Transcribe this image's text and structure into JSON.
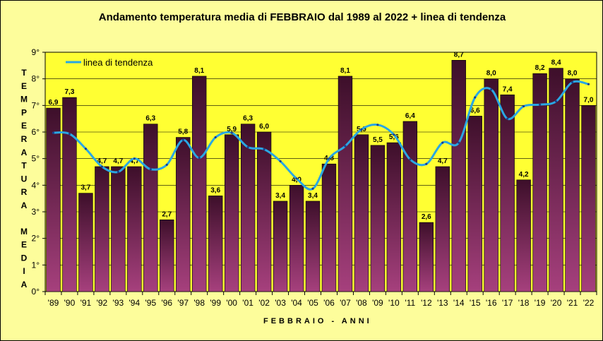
{
  "chart_data": {
    "type": "bar",
    "title": "Andamento temperatura media di FEBBRAIO dal 1989 al 2022 + linea di tendenza",
    "xlabel": "FEBBRAIO - ANNI",
    "ylabel": "TEMPERATURA MEDIA",
    "ylim": [
      0,
      9
    ],
    "yticks": [
      "0°",
      "1°",
      "2°",
      "3°",
      "4°",
      "5°",
      "6°",
      "7°",
      "8°",
      "9°"
    ],
    "categories": [
      "'89",
      "'90",
      "'91",
      "'92",
      "'93",
      "'94",
      "'95",
      "'96",
      "'97",
      "'98",
      "'99",
      "'00",
      "'01",
      "'02",
      "'03",
      "'04",
      "'05",
      "'06",
      "'07",
      "'08",
      "'09",
      "'10",
      "'11",
      "'12",
      "'13",
      "'14",
      "'15",
      "'16",
      "'17",
      "'18",
      "'19",
      "'20",
      "'21",
      "'22"
    ],
    "values": [
      6.9,
      7.3,
      3.7,
      4.7,
      4.7,
      4.7,
      6.3,
      2.7,
      5.8,
      8.1,
      3.6,
      5.9,
      6.3,
      6.0,
      3.4,
      4.0,
      3.4,
      4.8,
      8.1,
      5.9,
      5.5,
      5.6,
      6.4,
      2.6,
      4.7,
      8.7,
      6.6,
      8.0,
      7.4,
      4.2,
      8.2,
      8.4,
      8.0,
      7.0
    ],
    "data_labels": [
      "6,9",
      "7,3",
      "3,7",
      "4,7",
      "4,7",
      "4,7",
      "6,3",
      "2,7",
      "5,8",
      "8,1",
      "3,6",
      "5,9",
      "6,3",
      "6,0",
      "3,4",
      "4,0",
      "3,4",
      "4,8",
      "8,1",
      "5,9",
      "5,5",
      "5,6",
      "6,4",
      "2,6",
      "4,7",
      "8,7",
      "6,6",
      "8,0",
      "7,4",
      "4,2",
      "8,2",
      "8,4",
      "8,0",
      "7,0"
    ],
    "series": [
      {
        "name": "linea di tendenza",
        "type": "line",
        "values": [
          5.97,
          5.93,
          5.37,
          4.7,
          4.5,
          5.0,
          4.6,
          4.77,
          5.7,
          5.03,
          5.8,
          5.97,
          5.43,
          5.35,
          4.9,
          4.25,
          3.87,
          5.0,
          5.47,
          6.1,
          6.27,
          5.9,
          4.97,
          4.8,
          5.6,
          5.6,
          7.3,
          7.6,
          6.5,
          6.97,
          7.03,
          7.15,
          7.87,
          7.8
        ]
      }
    ],
    "colors": {
      "bar_top": "#3d0f2a",
      "bar_bottom": "#a6407d",
      "trend": "#2aa7e3",
      "plot_bg": "#ffff33",
      "outer_bg": "#fdfd9b"
    },
    "grid": true,
    "legend_position": "top-left"
  }
}
